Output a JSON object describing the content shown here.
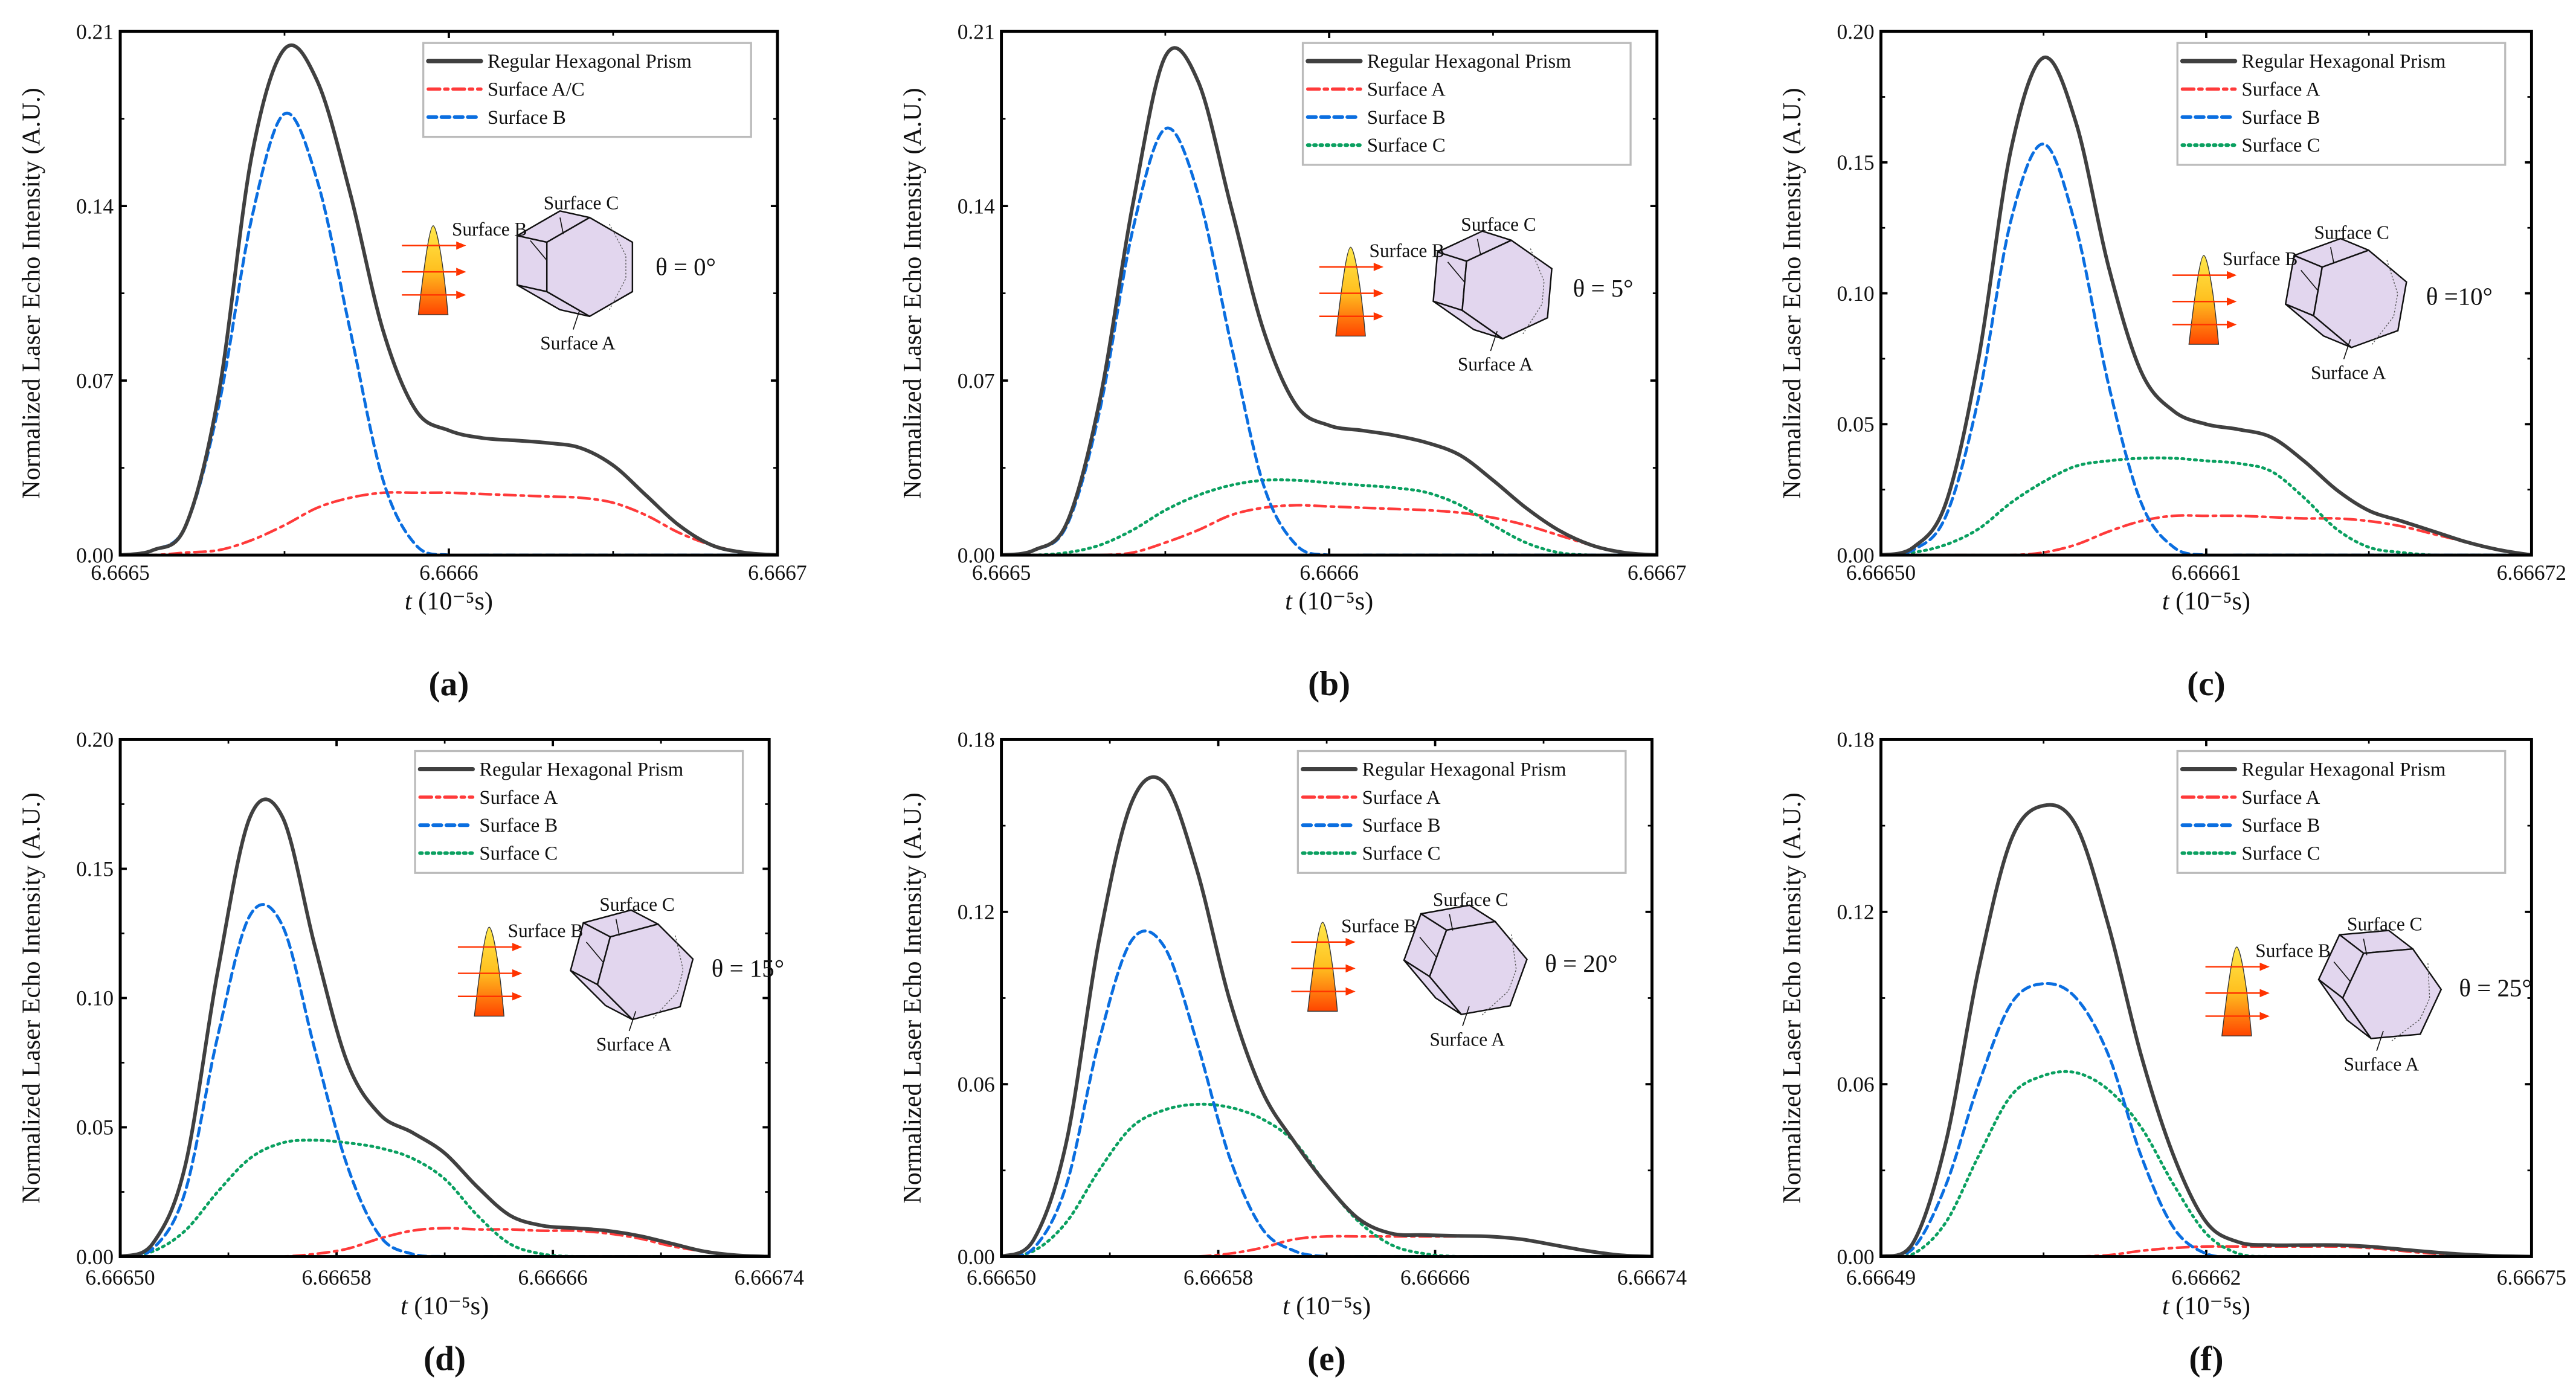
{
  "figure": {
    "colors": {
      "total": "#404040",
      "surface_a": "#ff3a3a",
      "surface_b": "#0a6ee0",
      "surface_c": "#0aa060",
      "prism_fill": "#e2d6ee",
      "laser_top": "#ffe84a",
      "laser_bottom": "#ff4500",
      "arrow": "#ff3300"
    },
    "ylabel": "Normalized Laser Echo Intensity (A.U.)",
    "xlabel_var": "t",
    "xlabel_unit": " (10⁻⁵s)"
  },
  "chart_data": [
    {
      "panel": "(a)",
      "panel_letter": "a",
      "type": "line",
      "theta": "θ = 0°",
      "theta_deg": 0,
      "inset_labels": {
        "a": "Surface A",
        "b": "Surface B",
        "c": "Surface C"
      },
      "xlim": [
        6.6665,
        6.6667
      ],
      "xticks": [
        "6.6665",
        "6.6666",
        "6.6667"
      ],
      "ylim": [
        0,
        0.21
      ],
      "yticks": [
        "0.00",
        "0.07",
        "0.14",
        "0.21"
      ],
      "x_start": 6.6665,
      "x_step": 1e-05,
      "legend": "top-right",
      "series": [
        {
          "key": "total",
          "name": "Regular Hexagonal Prism",
          "values": [
            0,
            0.002,
            0.012,
            0.065,
            0.16,
            0.203,
            0.19,
            0.145,
            0.09,
            0.058,
            0.05,
            0.047,
            0.046,
            0.045,
            0.043,
            0.036,
            0.024,
            0.012,
            0.004,
            0.001,
            0
          ]
        },
        {
          "key": "surface_a",
          "name": "Surface A/C",
          "values": [
            0,
            0,
            0.001,
            0.002,
            0.006,
            0.012,
            0.019,
            0.023,
            0.025,
            0.025,
            0.025,
            0.0245,
            0.024,
            0.0235,
            0.023,
            0.021,
            0.016,
            0.009,
            0.004,
            0.001,
            0
          ]
        },
        {
          "key": "surface_b",
          "name": "Surface B",
          "values": [
            0,
            0.002,
            0.012,
            0.06,
            0.135,
            0.177,
            0.15,
            0.09,
            0.03,
            0.004,
            0,
            0,
            0,
            0,
            0,
            0,
            0,
            0,
            0,
            0,
            0
          ]
        }
      ]
    },
    {
      "panel": "(b)",
      "panel_letter": "b",
      "type": "line",
      "theta": "θ = 5°",
      "theta_deg": 5,
      "inset_labels": {
        "a": "Surface A",
        "b": "Surface B",
        "c": "Surface C"
      },
      "xlim": [
        6.6665,
        6.6667
      ],
      "xticks": [
        "6.6665",
        "6.6666",
        "6.6667"
      ],
      "ylim": [
        0,
        0.21
      ],
      "yticks": [
        "0.00",
        "0.07",
        "0.14",
        "0.21"
      ],
      "x_start": 6.6665,
      "x_step": 1e-05,
      "legend": "top-right",
      "series": [
        {
          "key": "total",
          "name": "Regular Hexagonal Prism",
          "values": [
            0,
            0.002,
            0.013,
            0.062,
            0.14,
            0.2,
            0.19,
            0.14,
            0.09,
            0.06,
            0.052,
            0.05,
            0.048,
            0.045,
            0.04,
            0.03,
            0.019,
            0.01,
            0.004,
            0.001,
            0
          ]
        },
        {
          "key": "surface_a",
          "name": "Surface A",
          "values": [
            0,
            0,
            0,
            0,
            0.001,
            0.005,
            0.01,
            0.016,
            0.019,
            0.02,
            0.0195,
            0.019,
            0.0185,
            0.018,
            0.017,
            0.015,
            0.012,
            0.008,
            0.004,
            0.001,
            0
          ]
        },
        {
          "key": "surface_b",
          "name": "Surface B",
          "values": [
            0,
            0.002,
            0.012,
            0.058,
            0.13,
            0.171,
            0.145,
            0.085,
            0.028,
            0.004,
            0,
            0,
            0,
            0,
            0,
            0,
            0,
            0,
            0,
            0,
            0
          ]
        },
        {
          "key": "surface_c",
          "name": "Surface C",
          "values": [
            0,
            0,
            0.001,
            0.004,
            0.01,
            0.018,
            0.024,
            0.028,
            0.03,
            0.03,
            0.029,
            0.028,
            0.027,
            0.025,
            0.02,
            0.012,
            0.005,
            0.001,
            0,
            0,
            0
          ]
        }
      ]
    },
    {
      "panel": "(c)",
      "panel_letter": "c",
      "type": "line",
      "theta": "θ =10°",
      "theta_deg": 10,
      "inset_labels": {
        "a": "Surface A",
        "b": "Surface B",
        "c": "Surface C"
      },
      "xlim": [
        6.6665,
        6.66672
      ],
      "xticks": [
        "6.66650",
        "6.66661",
        "6.66672"
      ],
      "ylim": [
        0,
        0.2
      ],
      "yticks": [
        "0.00",
        "0.05",
        "0.10",
        "0.15",
        "0.20"
      ],
      "x_start": 6.6665,
      "x_step": 1.1e-05,
      "legend": "top-right",
      "series": [
        {
          "key": "total",
          "name": "Regular Hexagonal Prism",
          "values": [
            0,
            0.003,
            0.02,
            0.075,
            0.155,
            0.19,
            0.165,
            0.11,
            0.07,
            0.055,
            0.05,
            0.048,
            0.045,
            0.036,
            0.025,
            0.017,
            0.013,
            0.009,
            0.005,
            0.002,
            0
          ]
        },
        {
          "key": "surface_a",
          "name": "Surface A",
          "values": [
            0,
            0,
            0,
            0,
            0,
            0.001,
            0.004,
            0.009,
            0.013,
            0.015,
            0.015,
            0.015,
            0.0145,
            0.014,
            0.014,
            0.013,
            0.011,
            0.008,
            0.005,
            0.002,
            0
          ]
        },
        {
          "key": "surface_b",
          "name": "Surface B",
          "values": [
            0,
            0.002,
            0.015,
            0.06,
            0.128,
            0.157,
            0.125,
            0.065,
            0.02,
            0.003,
            0,
            0,
            0,
            0,
            0,
            0,
            0,
            0,
            0,
            0,
            0
          ]
        },
        {
          "key": "surface_c",
          "name": "Surface C",
          "values": [
            0,
            0.001,
            0.004,
            0.01,
            0.02,
            0.028,
            0.034,
            0.036,
            0.037,
            0.037,
            0.036,
            0.035,
            0.032,
            0.022,
            0.01,
            0.003,
            0.001,
            0,
            0,
            0,
            0
          ]
        }
      ]
    },
    {
      "panel": "(d)",
      "panel_letter": "d",
      "type": "line",
      "theta": "θ = 15°",
      "theta_deg": 15,
      "inset_labels": {
        "a": "Surface A",
        "b": "Surface B",
        "c": "Surface C"
      },
      "xlim": [
        6.6665,
        6.66674
      ],
      "xticks": [
        "6.66650",
        "6.66658",
        "6.66666",
        "6.66674"
      ],
      "ylim": [
        0,
        0.2
      ],
      "yticks": [
        "0.00",
        "0.05",
        "0.10",
        "0.15",
        "0.20"
      ],
      "x_start": 6.6665,
      "x_step": 1.2e-05,
      "legend": "top-right",
      "series": [
        {
          "key": "total",
          "name": "Regular Hexagonal Prism",
          "values": [
            0,
            0.005,
            0.035,
            0.11,
            0.17,
            0.17,
            0.12,
            0.075,
            0.055,
            0.048,
            0.04,
            0.027,
            0.016,
            0.012,
            0.011,
            0.01,
            0.008,
            0.005,
            0.002,
            0.0005,
            0
          ]
        },
        {
          "key": "surface_a",
          "name": "Surface A",
          "values": [
            0,
            0,
            0,
            0,
            0,
            0,
            0.001,
            0.003,
            0.007,
            0.01,
            0.011,
            0.0105,
            0.0105,
            0.01,
            0.01,
            0.009,
            0.007,
            0.004,
            0.002,
            0.0005,
            0
          ]
        },
        {
          "key": "surface_b",
          "name": "Surface B",
          "values": [
            0,
            0.003,
            0.025,
            0.085,
            0.132,
            0.128,
            0.08,
            0.035,
            0.008,
            0.001,
            0,
            0,
            0,
            0,
            0,
            0,
            0,
            0,
            0,
            0,
            0
          ]
        },
        {
          "key": "surface_c",
          "name": "Surface C",
          "values": [
            0,
            0.002,
            0.01,
            0.025,
            0.038,
            0.044,
            0.045,
            0.044,
            0.042,
            0.038,
            0.03,
            0.016,
            0.005,
            0.001,
            0,
            0,
            0,
            0,
            0,
            0,
            0
          ]
        }
      ]
    },
    {
      "panel": "(e)",
      "panel_letter": "e",
      "type": "line",
      "theta": "θ = 20°",
      "theta_deg": 20,
      "inset_labels": {
        "a": "Surface A",
        "b": "Surface B",
        "c": "Surface C"
      },
      "xlim": [
        6.6665,
        6.66674
      ],
      "xticks": [
        "6.66650",
        "6.66658",
        "6.66666",
        "6.66674"
      ],
      "ylim": [
        0,
        0.18
      ],
      "yticks": [
        "0.00",
        "0.06",
        "0.12",
        "0.18"
      ],
      "x_start": 6.6665,
      "x_step": 1.2e-05,
      "legend": "top-right",
      "series": [
        {
          "key": "total",
          "name": "Regular Hexagonal Prism",
          "values": [
            0,
            0.006,
            0.04,
            0.11,
            0.158,
            0.165,
            0.135,
            0.09,
            0.058,
            0.04,
            0.025,
            0.013,
            0.008,
            0.0075,
            0.0072,
            0.007,
            0.006,
            0.004,
            0.002,
            0.0005,
            0
          ]
        },
        {
          "key": "surface_a",
          "name": "Surface A",
          "values": [
            0,
            0,
            0,
            0,
            0,
            0,
            0,
            0.001,
            0.003,
            0.006,
            0.007,
            0.007,
            0.007,
            0.007,
            0.007,
            0.007,
            0.006,
            0.004,
            0.002,
            0.0005,
            0
          ]
        },
        {
          "key": "surface_b",
          "name": "Surface B",
          "values": [
            0,
            0.003,
            0.025,
            0.075,
            0.11,
            0.108,
            0.075,
            0.035,
            0.01,
            0.002,
            0,
            0,
            0,
            0,
            0,
            0,
            0,
            0,
            0,
            0,
            0
          ]
        },
        {
          "key": "surface_c",
          "name": "Surface C",
          "values": [
            0,
            0.002,
            0.012,
            0.03,
            0.045,
            0.051,
            0.053,
            0.052,
            0.048,
            0.04,
            0.025,
            0.012,
            0.004,
            0.001,
            0,
            0,
            0,
            0,
            0,
            0,
            0
          ]
        }
      ]
    },
    {
      "panel": "(f)",
      "panel_letter": "f",
      "type": "line",
      "theta": "θ = 25°",
      "theta_deg": 25,
      "inset_labels": {
        "a": "Surface A",
        "b": "Surface B",
        "c": "Surface C"
      },
      "xlim": [
        6.66649,
        6.66675
      ],
      "xticks": [
        "6.66649",
        "6.66662",
        "6.66675"
      ],
      "ylim": [
        0,
        0.18
      ],
      "yticks": [
        "0.00",
        "0.06",
        "0.12",
        "0.18"
      ],
      "x_start": 6.66649,
      "x_step": 1.3e-05,
      "legend": "top-right",
      "series": [
        {
          "key": "total",
          "name": "Regular Hexagonal Prism",
          "values": [
            0,
            0.005,
            0.04,
            0.1,
            0.145,
            0.157,
            0.15,
            0.115,
            0.07,
            0.035,
            0.012,
            0.005,
            0.004,
            0.004,
            0.004,
            0.0035,
            0.0025,
            0.0015,
            0.0007,
            0.0002,
            0
          ]
        },
        {
          "key": "surface_a",
          "name": "Surface A",
          "values": [
            0,
            0,
            0,
            0,
            0,
            0,
            0,
            0.0005,
            0.002,
            0.003,
            0.0035,
            0.0035,
            0.0035,
            0.0035,
            0.0035,
            0.003,
            0.002,
            0.001,
            0.0005,
            0,
            0
          ]
        },
        {
          "key": "surface_b",
          "name": "Surface B",
          "values": [
            0,
            0.003,
            0.025,
            0.06,
            0.088,
            0.095,
            0.09,
            0.07,
            0.035,
            0.01,
            0.001,
            0,
            0,
            0,
            0,
            0,
            0,
            0,
            0,
            0,
            0
          ]
        },
        {
          "key": "surface_c",
          "name": "Surface C",
          "values": [
            0,
            0.001,
            0.012,
            0.035,
            0.056,
            0.063,
            0.064,
            0.058,
            0.045,
            0.025,
            0.008,
            0.001,
            0,
            0,
            0,
            0,
            0,
            0,
            0,
            0,
            0
          ]
        }
      ]
    }
  ]
}
